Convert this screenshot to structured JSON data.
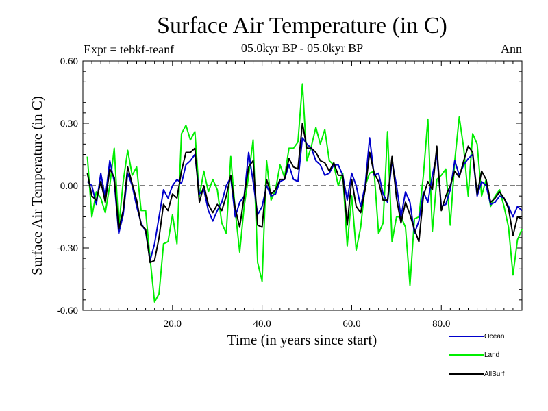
{
  "chart_data": {
    "type": "line",
    "title": "Surface Air Temperature (in C)",
    "subtitle": "05.0kyr BP - 05.0kyr BP",
    "expt_label": "Expt = tebkf-teanf",
    "season_label": "Ann",
    "xlabel": "Time (in years since start)",
    "ylabel": "Surface Air Temperature (in C)",
    "xlim": [
      0,
      98
    ],
    "ylim": [
      -0.6,
      0.6
    ],
    "xticks": [
      20,
      40,
      60,
      80
    ],
    "xtick_labels": [
      "20.0",
      "40.0",
      "60.0",
      "80.0"
    ],
    "yticks": [
      0.6,
      0.3,
      0.0,
      -0.3,
      -0.6
    ],
    "ytick_labels": [
      "0.60",
      "0.30",
      "0.00",
      "-0.30",
      "-0.60"
    ],
    "zero_line": "dashed",
    "series": [
      {
        "name": "Ocean",
        "color": "#0000cc",
        "values": [
          0.02,
          0.0,
          -0.09,
          0.06,
          -0.06,
          0.12,
          0.02,
          -0.23,
          -0.14,
          0.06,
          0.0,
          -0.1,
          -0.18,
          -0.22,
          -0.36,
          -0.28,
          -0.15,
          -0.02,
          -0.06,
          0.0,
          0.03,
          0.01,
          0.1,
          0.12,
          0.15,
          -0.04,
          -0.02,
          -0.12,
          -0.17,
          -0.12,
          -0.08,
          0.0,
          0.04,
          -0.15,
          -0.08,
          -0.05,
          0.16,
          0.02,
          -0.14,
          -0.1,
          0.0,
          -0.05,
          -0.04,
          0.02,
          0.03,
          0.1,
          0.03,
          0.02,
          0.23,
          0.2,
          0.18,
          0.12,
          0.1,
          0.05,
          0.06,
          0.1,
          0.1,
          0.05,
          -0.07,
          0.06,
          0.0,
          -0.1,
          0.0,
          0.23,
          0.05,
          0.06,
          -0.04,
          -0.08,
          0.12,
          0.0,
          -0.15,
          -0.03,
          -0.08,
          -0.23,
          -0.17,
          -0.03,
          -0.08,
          0.05,
          0.15,
          -0.1,
          -0.09,
          -0.02,
          0.12,
          0.05,
          0.1,
          0.13,
          0.15,
          -0.05,
          0.02,
          0.0,
          -0.09,
          -0.08,
          -0.05,
          -0.06,
          -0.1,
          -0.15,
          -0.1,
          -0.12
        ]
      },
      {
        "name": "Land",
        "color": "#00ee00",
        "values": [
          0.14,
          -0.15,
          -0.03,
          -0.06,
          -0.13,
          0.0,
          0.18,
          -0.2,
          0.02,
          0.17,
          0.05,
          0.09,
          -0.12,
          -0.12,
          -0.35,
          -0.56,
          -0.52,
          -0.28,
          -0.27,
          -0.14,
          -0.28,
          0.25,
          0.29,
          0.22,
          0.26,
          -0.05,
          0.07,
          -0.03,
          0.03,
          -0.02,
          -0.18,
          -0.23,
          0.14,
          -0.12,
          -0.32,
          -0.1,
          0.05,
          0.22,
          -0.37,
          -0.46,
          0.12,
          -0.07,
          -0.02,
          0.1,
          0.04,
          0.18,
          0.18,
          0.21,
          0.49,
          0.12,
          0.19,
          0.28,
          0.2,
          0.27,
          0.12,
          0.1,
          0.0,
          0.06,
          -0.29,
          -0.05,
          -0.31,
          -0.2,
          0.0,
          0.06,
          0.07,
          -0.23,
          -0.18,
          0.26,
          -0.27,
          -0.15,
          -0.15,
          -0.2,
          -0.48,
          -0.16,
          -0.15,
          0.05,
          0.32,
          -0.22,
          0.03,
          0.05,
          0.08,
          -0.19,
          0.12,
          0.33,
          0.18,
          -0.05,
          0.25,
          0.2,
          -0.05,
          0.03,
          -0.1,
          -0.05,
          -0.02,
          -0.1,
          -0.2,
          -0.43,
          -0.26,
          -0.21
        ]
      },
      {
        "name": "AllSurf",
        "color": "#000000",
        "values": [
          0.06,
          -0.05,
          -0.07,
          0.02,
          -0.08,
          0.08,
          0.04,
          -0.21,
          -0.12,
          0.09,
          0.01,
          -0.07,
          -0.19,
          -0.21,
          -0.37,
          -0.36,
          -0.25,
          -0.09,
          -0.12,
          -0.04,
          -0.06,
          0.07,
          0.16,
          0.16,
          0.18,
          -0.08,
          0.0,
          -0.09,
          -0.13,
          -0.09,
          -0.12,
          -0.05,
          0.05,
          -0.11,
          -0.2,
          -0.05,
          0.09,
          0.12,
          -0.19,
          -0.2,
          0.03,
          -0.04,
          -0.02,
          0.03,
          0.03,
          0.13,
          0.09,
          0.08,
          0.3,
          0.18,
          0.18,
          0.16,
          0.12,
          0.11,
          0.07,
          0.11,
          0.05,
          0.05,
          -0.19,
          0.03,
          -0.1,
          -0.13,
          -0.02,
          0.16,
          0.06,
          0.02,
          -0.07,
          -0.07,
          0.14,
          -0.06,
          -0.18,
          -0.08,
          -0.14,
          -0.21,
          -0.27,
          -0.05,
          0.02,
          -0.02,
          0.19,
          -0.12,
          -0.05,
          0.0,
          0.07,
          0.04,
          0.12,
          0.19,
          0.16,
          -0.04,
          0.07,
          0.03,
          -0.08,
          -0.06,
          -0.03,
          -0.06,
          -0.11,
          -0.24,
          -0.15,
          -0.16
        ]
      }
    ],
    "legend": [
      "Ocean",
      "Land",
      "AllSurf"
    ],
    "legend_position": "bottom-right"
  }
}
